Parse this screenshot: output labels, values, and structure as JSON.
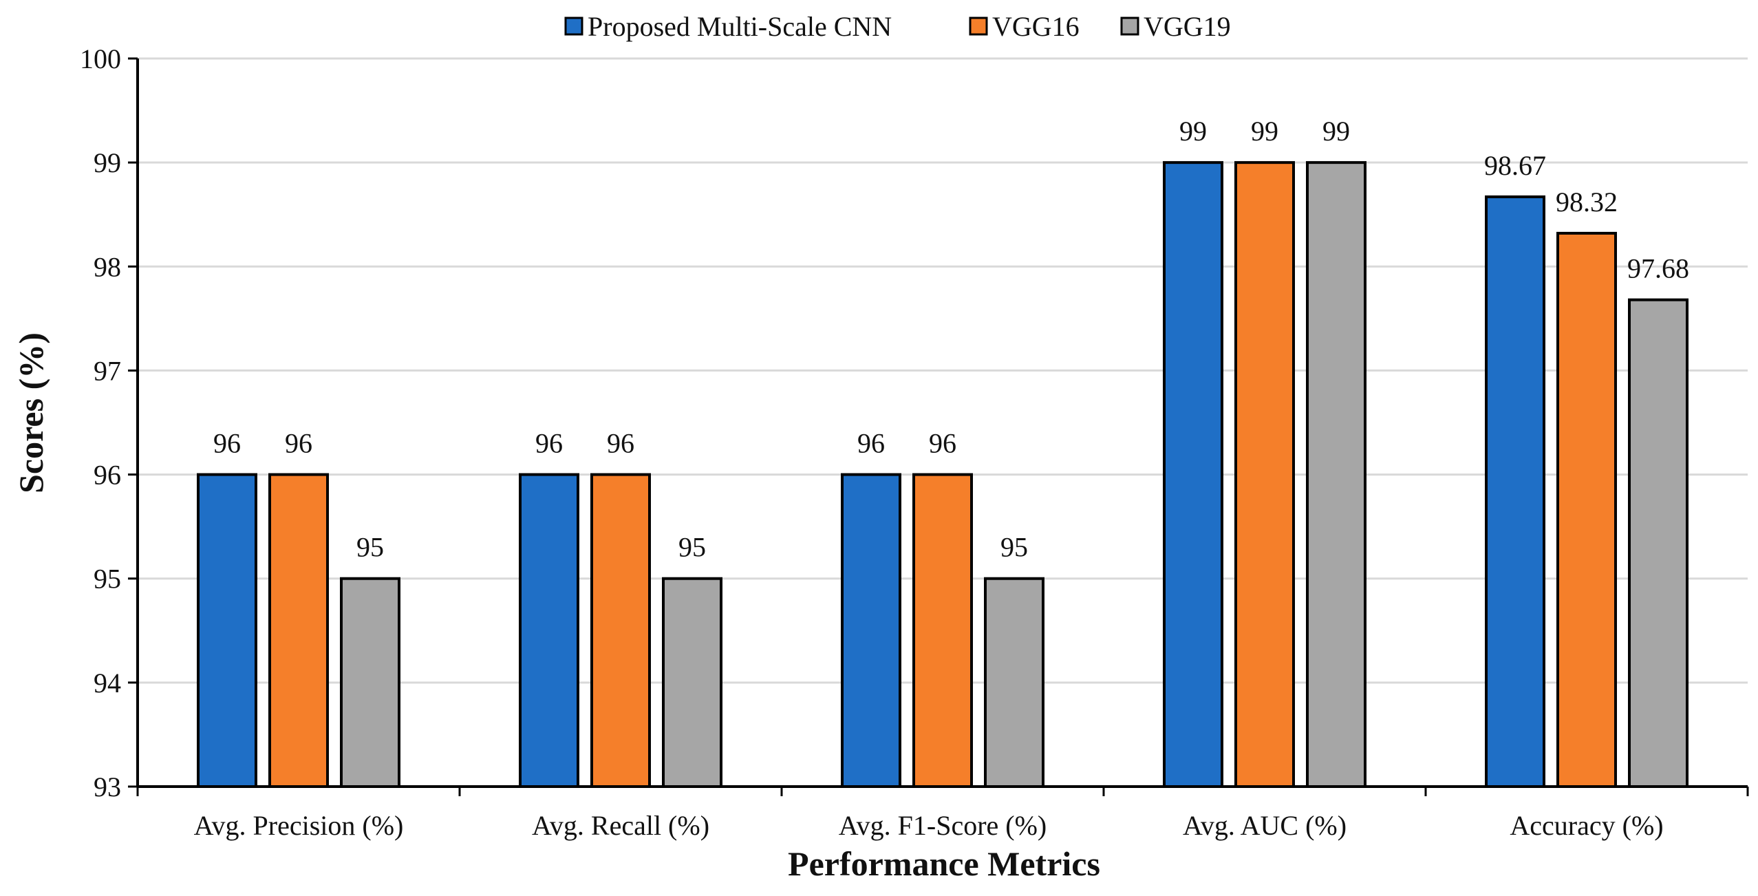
{
  "chart_data": {
    "type": "bar",
    "categories": [
      "Avg. Precision (%)",
      "Avg. Recall (%)",
      "Avg. F1-Score (%)",
      "Avg. AUC (%)",
      "Accuracy (%)"
    ],
    "series": [
      {
        "name": "Proposed Multi-Scale CNN",
        "color": "#1f6fc6",
        "values": [
          96,
          96,
          96,
          99,
          98.67
        ],
        "labels": [
          "96",
          "96",
          "96",
          "99",
          "98.67"
        ]
      },
      {
        "name": "VGG16",
        "color": "#f57f2a",
        "values": [
          96,
          96,
          96,
          99,
          98.32
        ],
        "labels": [
          "96",
          "96",
          "96",
          "99",
          "98.32"
        ]
      },
      {
        "name": "VGG19",
        "color": "#a6a6a6",
        "values": [
          95,
          95,
          95,
          99,
          97.68
        ],
        "labels": [
          "95",
          "95",
          "95",
          "99",
          "97.68"
        ]
      }
    ],
    "xlabel": "Performance Metrics",
    "ylabel": "Scores (%)",
    "ylim": [
      93,
      100
    ],
    "yticks": [
      93,
      94,
      95,
      96,
      97,
      98,
      99,
      100
    ],
    "ytick_labels": [
      "93",
      "94",
      "95",
      "96",
      "97",
      "98",
      "99",
      "100"
    ],
    "grid": true,
    "legend_position": "top-center",
    "colors": {
      "grid": "#d9d9d9",
      "axis": "#000000",
      "bar_outline": "#000000"
    }
  }
}
